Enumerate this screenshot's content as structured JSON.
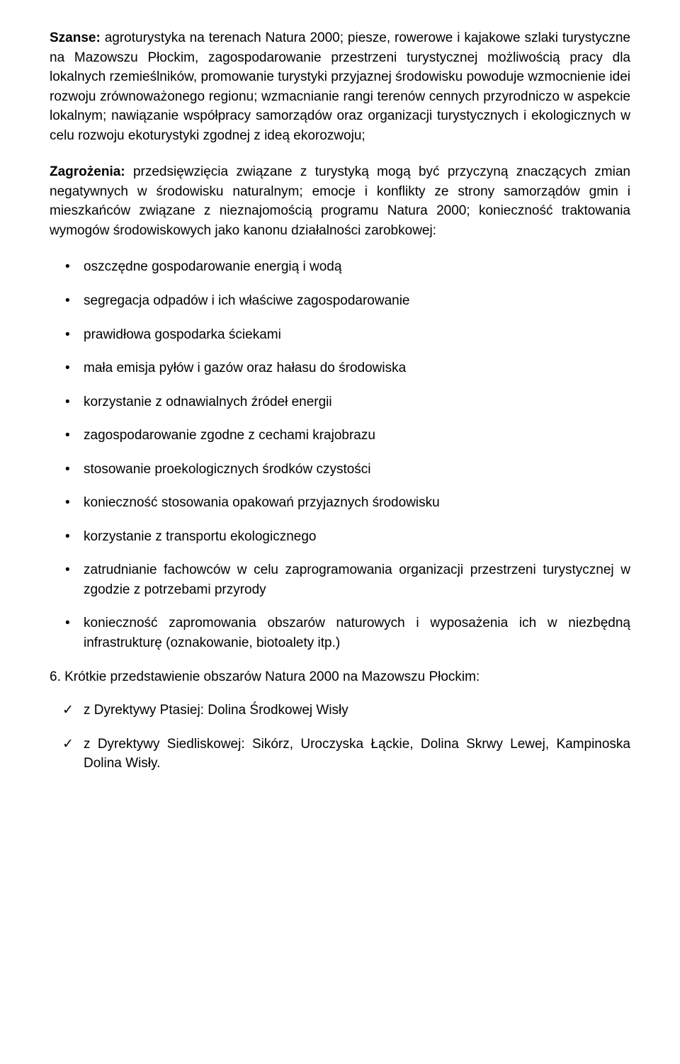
{
  "para1": {
    "label": "Szanse:",
    "text": " agroturystyka na terenach Natura 2000; piesze, rowerowe i kajakowe szlaki turystyczne na Mazowszu Płockim, zagospodarowanie przestrzeni turystycznej możliwością pracy dla lokalnych rzemieślników, promowanie turystyki przyjaznej środowisku powoduje wzmocnienie idei rozwoju zrównoważonego regionu; wzmacnianie rangi terenów cennych przyrodniczo w aspekcie lokalnym; nawiązanie współpracy samorządów oraz organizacji turystycznych i ekologicznych w celu rozwoju ekoturystyki zgodnej z ideą ekorozwoju;"
  },
  "para2": {
    "label": "Zagrożenia:",
    "text": " przedsięwzięcia związane z turystyką mogą być przyczyną znaczących zmian negatywnych w środowisku naturalnym; emocje i konflikty ze strony samorządów gmin i mieszkańców związane z nieznajomością programu Natura 2000; konieczność traktowania wymogów środowiskowych jako kanonu działalności zarobkowej:"
  },
  "bullets": [
    "oszczędne gospodarowanie energią i wodą",
    "segregacja odpadów i ich właściwe zagospodarowanie",
    "prawidłowa gospodarka ściekami",
    "mała emisja pyłów i gazów oraz hałasu do środowiska",
    "korzystanie z odnawialnych źródeł energii",
    "zagospodarowanie zgodne z cechami krajobrazu",
    "stosowanie proekologicznych środków czystości",
    "konieczność stosowania opakowań przyjaznych środowisku",
    "korzystanie z transportu ekologicznego",
    "zatrudnianie fachowców w celu zaprogramowania organizacji przestrzeni turystycznej w zgodzie z potrzebami przyrody",
    "konieczność zapromowania obszarów naturowych i wyposażenia ich w niezbędną infrastrukturę (oznakowanie, biotoalety itp.)"
  ],
  "section6": "6. Krótkie przedstawienie obszarów Natura 2000 na Mazowszu Płockim:",
  "checks": [
    "z Dyrektywy Ptasiej: Dolina Środkowej Wisły",
    "z Dyrektywy Siedliskowej: Sikórz, Uroczyska Łąckie, Dolina Skrwy Lewej, Kampinoska Dolina Wisły."
  ]
}
